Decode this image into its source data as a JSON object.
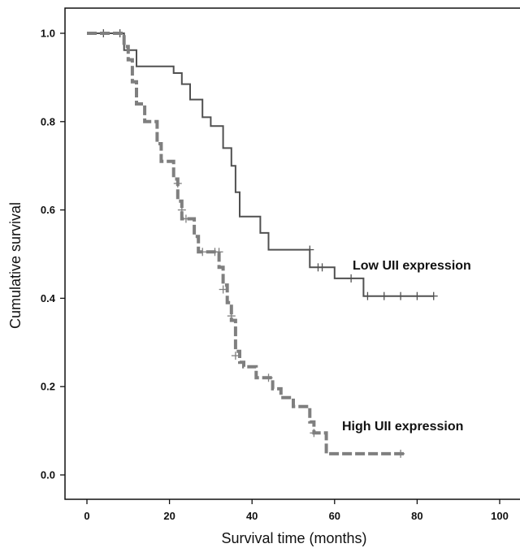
{
  "chart_data": {
    "type": "line",
    "subtype": "kaplan-meier",
    "title": "",
    "xlabel": "Survival time (months)",
    "ylabel": "Cumulative survival",
    "xlim": [
      0,
      100
    ],
    "ylim": [
      0,
      1.0
    ],
    "xticks": [
      "0",
      "20",
      "40",
      "60",
      "80",
      "100"
    ],
    "yticks": [
      "0.0",
      "0.2",
      "0.4",
      "0.6",
      "0.8",
      "1.0"
    ],
    "grid": false,
    "colors": {
      "low": "#505050",
      "high": "#7f7f7f",
      "axis": "#111111"
    },
    "series": [
      {
        "name": "Low UII expression",
        "style": "solid",
        "steps": [
          [
            0,
            1.0
          ],
          [
            9,
            0.962
          ],
          [
            12,
            0.925
          ],
          [
            21,
            0.91
          ],
          [
            23,
            0.885
          ],
          [
            25,
            0.85
          ],
          [
            28,
            0.81
          ],
          [
            30,
            0.79
          ],
          [
            33,
            0.74
          ],
          [
            35,
            0.7
          ],
          [
            36,
            0.64
          ],
          [
            37,
            0.585
          ],
          [
            42,
            0.548
          ],
          [
            44,
            0.51
          ],
          [
            54,
            0.47
          ],
          [
            60,
            0.445
          ],
          [
            67,
            0.405
          ],
          [
            84,
            0.405
          ]
        ],
        "censored": [
          [
            4,
            1.0
          ],
          [
            8,
            1.0
          ],
          [
            54,
            0.51
          ],
          [
            56,
            0.47
          ],
          [
            57,
            0.47
          ],
          [
            64,
            0.445
          ],
          [
            68,
            0.405
          ],
          [
            72,
            0.405
          ],
          [
            76,
            0.405
          ],
          [
            80,
            0.405
          ],
          [
            84,
            0.405
          ]
        ]
      },
      {
        "name": "High UII expression",
        "style": "dashed",
        "steps": [
          [
            0,
            1.0
          ],
          [
            9,
            0.97
          ],
          [
            10,
            0.94
          ],
          [
            11,
            0.89
          ],
          [
            12,
            0.84
          ],
          [
            14,
            0.8
          ],
          [
            17,
            0.75
          ],
          [
            18,
            0.71
          ],
          [
            21,
            0.67
          ],
          [
            22,
            0.62
          ],
          [
            23,
            0.58
          ],
          [
            26,
            0.54
          ],
          [
            27,
            0.505
          ],
          [
            32,
            0.47
          ],
          [
            33,
            0.43
          ],
          [
            34,
            0.39
          ],
          [
            35,
            0.35
          ],
          [
            36,
            0.28
          ],
          [
            37,
            0.255
          ],
          [
            38,
            0.245
          ],
          [
            41,
            0.22
          ],
          [
            45,
            0.195
          ],
          [
            47,
            0.175
          ],
          [
            50,
            0.155
          ],
          [
            54,
            0.12
          ],
          [
            55,
            0.095
          ],
          [
            58,
            0.048
          ],
          [
            77,
            0.048
          ]
        ],
        "censored": [
          [
            22,
            0.66
          ],
          [
            23,
            0.6
          ],
          [
            24,
            0.58
          ],
          [
            28,
            0.505
          ],
          [
            31,
            0.505
          ],
          [
            32,
            0.505
          ],
          [
            33,
            0.42
          ],
          [
            35,
            0.36
          ],
          [
            36,
            0.27
          ],
          [
            44,
            0.22
          ],
          [
            55,
            0.095
          ],
          [
            76,
            0.048
          ]
        ]
      }
    ],
    "annotations": [
      {
        "text": "Low UII expression",
        "series": "Low UII expression"
      },
      {
        "text": "High UII expression",
        "series": "High UII expression"
      }
    ]
  }
}
